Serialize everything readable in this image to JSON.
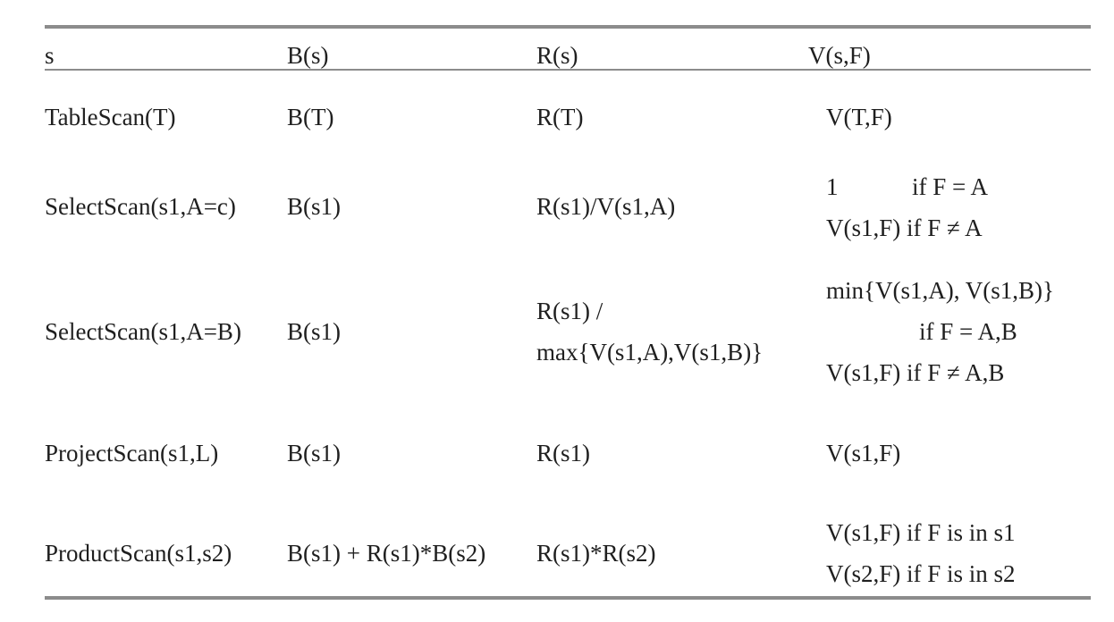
{
  "headers": [
    "s",
    "B(s)",
    "R(s)",
    "V(s,F)"
  ],
  "rows": [
    {
      "s": "TableScan(T)",
      "b": "B(T)",
      "r": [
        "R(T)"
      ],
      "v": [
        "V(T,F)"
      ]
    },
    {
      "s": "SelectScan(s1,A=c)",
      "b": "B(s1)",
      "r": [
        "R(s1)/V(s1,A)"
      ],
      "v_first_value": "1",
      "v_first_cond": "if F = A",
      "v": [
        "V(s1,F) if F ≠ A"
      ]
    },
    {
      "s": "SelectScan(s1,A=B)",
      "b": "B(s1)",
      "r": [
        "R(s1) /",
        "max{V(s1,A),V(s1,B)}"
      ],
      "v": [
        "min{V(s1,A), V(s1,B)}",
        "if F = A,B",
        "V(s1,F) if F ≠ A,B"
      ]
    },
    {
      "s": "ProjectScan(s1,L)",
      "b": "B(s1)",
      "r": [
        "R(s1)"
      ],
      "v": [
        "V(s1,F)"
      ]
    },
    {
      "s": "ProductScan(s1,s2)",
      "b": "B(s1) + R(s1)*B(s2)",
      "r": [
        "R(s1)*R(s2)"
      ],
      "v": [
        "V(s1,F) if F is in s1",
        "V(s2,F) if F is in s2"
      ]
    }
  ]
}
